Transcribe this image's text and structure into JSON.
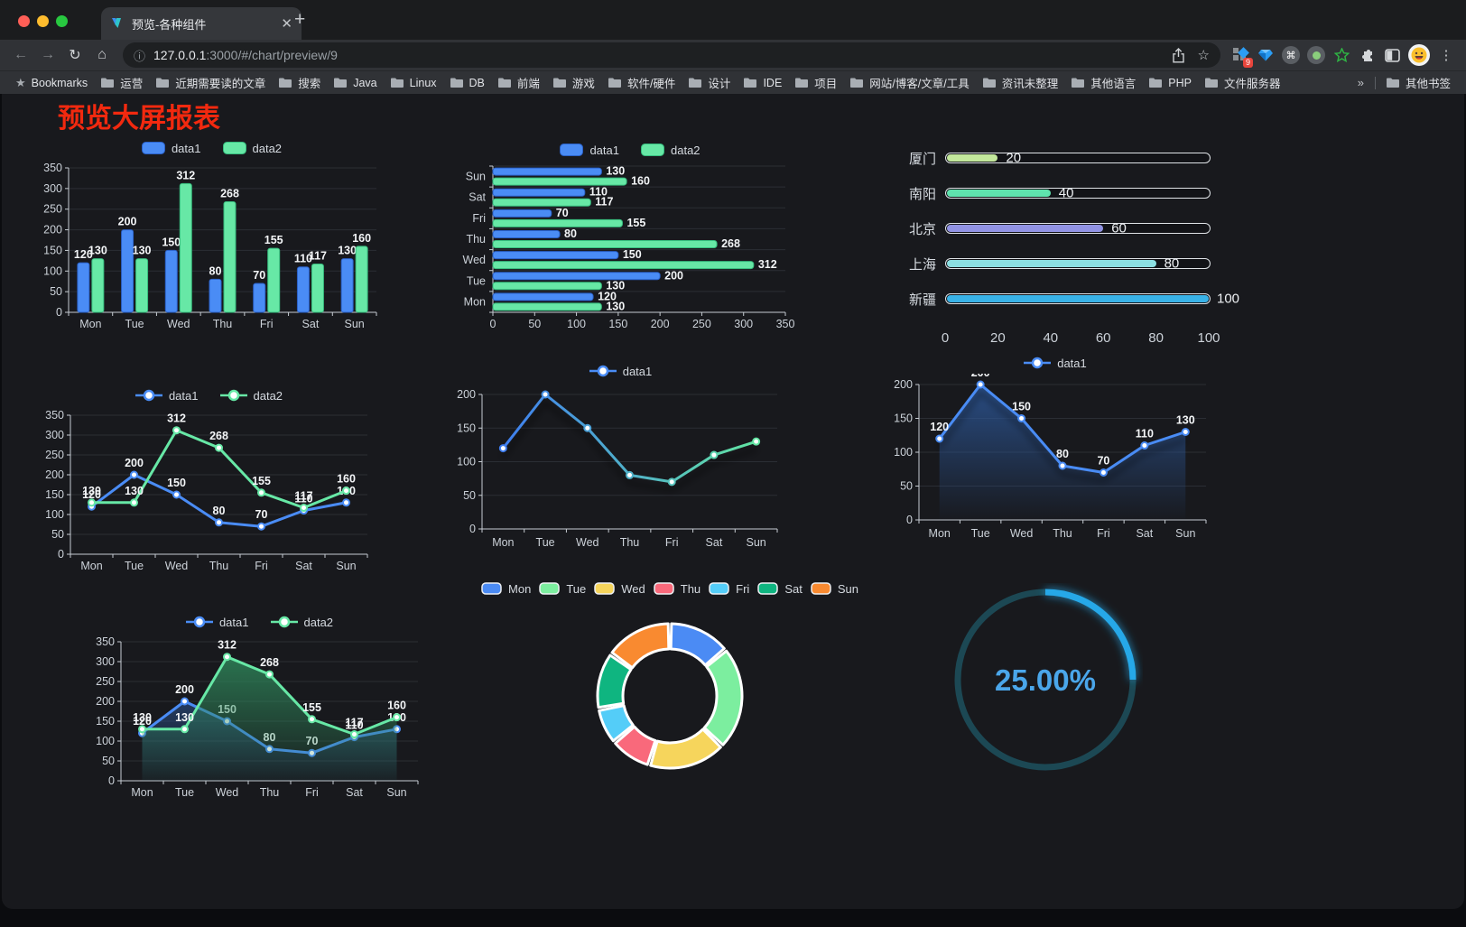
{
  "browser": {
    "tab_title": "预览-各种组件",
    "url": "127.0.0.1:3000/#/chart/preview/9",
    "url_domain": "127.0.0.1",
    "url_path": ":3000/#/chart/preview/9",
    "extension_badge": "9",
    "bookmarks_label": "Bookmarks",
    "bookmarks": [
      "运营",
      "近期需要读的文章",
      "搜索",
      "Java",
      "Linux",
      "DB",
      "前端",
      "游戏",
      "软件/硬件",
      "设计",
      "IDE",
      "项目",
      "网站/博客/文章/工具",
      "资讯未整理",
      "其他语言",
      "PHP",
      "文件服务器"
    ],
    "bookmarks_overflow": "»",
    "other_bookmarks": "其他书签"
  },
  "page": {
    "title": "预览大屏报表",
    "title_color": "#f2290f",
    "panel_background": "#18191d"
  },
  "chart_data": [
    {
      "id": "grouped-bar",
      "type": "bar",
      "categories": [
        "Mon",
        "Tue",
        "Wed",
        "Thu",
        "Fri",
        "Sat",
        "Sun"
      ],
      "series": [
        {
          "name": "data1",
          "color": "#4a8cf5",
          "border": "#2a61c9",
          "values": [
            120,
            200,
            150,
            80,
            70,
            110,
            130
          ]
        },
        {
          "name": "data2",
          "color": "#67e8a6",
          "border": "#36bd7e",
          "values": [
            130,
            130,
            312,
            268,
            155,
            117,
            160
          ]
        }
      ],
      "ylim": [
        0,
        350
      ],
      "ystep": 50,
      "grid": true,
      "labels": true,
      "legend_position": "top"
    },
    {
      "id": "horizontal-bar",
      "type": "bar-horizontal",
      "categories": [
        "Mon",
        "Tue",
        "Wed",
        "Thu",
        "Fri",
        "Sat",
        "Sun"
      ],
      "series": [
        {
          "name": "data1",
          "color": "#4a8cf5",
          "border": "#2a61c9",
          "values": [
            120,
            200,
            150,
            80,
            70,
            110,
            130
          ]
        },
        {
          "name": "data2",
          "color": "#67e8a6",
          "border": "#36bd7e",
          "values": [
            130,
            130,
            312,
            268,
            155,
            117,
            160
          ]
        }
      ],
      "xlim": [
        0,
        350
      ],
      "xstep": 50,
      "labels": true,
      "legend_position": "top"
    },
    {
      "id": "progress-bars",
      "type": "progress",
      "items": [
        {
          "label": "厦门",
          "value": 20,
          "color": "#c3e89c"
        },
        {
          "label": "南阳",
          "value": 40,
          "color": "#5fe3ae"
        },
        {
          "label": "北京",
          "value": 60,
          "color": "#9193e4"
        },
        {
          "label": "上海",
          "value": 80,
          "color": "#8ce0e3"
        },
        {
          "label": "新疆",
          "value": 100,
          "color": "#39b2e7"
        }
      ],
      "max": 100,
      "xticks": [
        0,
        20,
        40,
        60,
        80,
        100
      ]
    },
    {
      "id": "line-two",
      "type": "line",
      "categories": [
        "Mon",
        "Tue",
        "Wed",
        "Thu",
        "Fri",
        "Sat",
        "Sun"
      ],
      "series": [
        {
          "name": "data1",
          "color": "#4a8cf5",
          "values": [
            120,
            200,
            150,
            80,
            70,
            110,
            130
          ]
        },
        {
          "name": "data2",
          "color": "#67e8a6",
          "values": [
            130,
            130,
            312,
            268,
            155,
            117,
            160
          ]
        }
      ],
      "ylim": [
        0,
        350
      ],
      "ystep": 50,
      "labels": true,
      "legend_position": "top"
    },
    {
      "id": "line-gradient",
      "type": "line",
      "categories": [
        "Mon",
        "Tue",
        "Wed",
        "Thu",
        "Fri",
        "Sat",
        "Sun"
      ],
      "series": [
        {
          "name": "data1",
          "color": "#4a8cf5",
          "gradient": [
            "#3f7ef0",
            "#62e5a2"
          ],
          "values": [
            120,
            200,
            150,
            80,
            70,
            110,
            130
          ]
        }
      ],
      "ylim": [
        0,
        200
      ],
      "ystep": 50,
      "labels": false,
      "shadow": true,
      "legend_position": "top"
    },
    {
      "id": "line-area",
      "type": "line",
      "categories": [
        "Mon",
        "Tue",
        "Wed",
        "Thu",
        "Fri",
        "Sat",
        "Sun"
      ],
      "series": [
        {
          "name": "data1",
          "color": "#4a8cf5",
          "area": [
            "rgba(44,86,150,0.85)",
            "rgba(44,86,150,0.02)"
          ],
          "values": [
            120,
            200,
            150,
            80,
            70,
            110,
            130
          ]
        }
      ],
      "ylim": [
        0,
        200
      ],
      "ystep": 50,
      "labels": true,
      "shadow": true,
      "legend_position": "top"
    },
    {
      "id": "line-area-two",
      "type": "line",
      "categories": [
        "Mon",
        "Tue",
        "Wed",
        "Thu",
        "Fri",
        "Sat",
        "Sun"
      ],
      "series": [
        {
          "name": "data1",
          "color": "#4a8cf5",
          "area": [
            "rgba(44,86,150,0.55)",
            "rgba(44,86,150,0.04)"
          ],
          "values": [
            120,
            200,
            150,
            80,
            70,
            110,
            130
          ]
        },
        {
          "name": "data2",
          "color": "#67e8a6",
          "area": [
            "rgba(47,138,92,0.8)",
            "rgba(47,138,92,0.05)"
          ],
          "values": [
            130,
            130,
            312,
            268,
            155,
            117,
            160
          ]
        }
      ],
      "ylim": [
        0,
        350
      ],
      "ystep": 50,
      "labels": true,
      "legend_position": "top"
    },
    {
      "id": "donut",
      "type": "pie",
      "items": [
        {
          "label": "Mon",
          "value": 120,
          "color": "#4b8bf4"
        },
        {
          "label": "Tue",
          "value": 200,
          "color": "#7cee9f"
        },
        {
          "label": "Wed",
          "value": 150,
          "color": "#f6d55c"
        },
        {
          "label": "Thu",
          "value": 80,
          "color": "#f9697b"
        },
        {
          "label": "Fri",
          "value": 70,
          "color": "#54cdf8"
        },
        {
          "label": "Sat",
          "value": 110,
          "color": "#0fb580"
        },
        {
          "label": "Sun",
          "value": 130,
          "color": "#f98a30"
        }
      ],
      "legend_position": "top"
    },
    {
      "id": "gauge",
      "type": "gauge",
      "value": 25,
      "label": "25.00%",
      "color": "#27a8e8",
      "track": "#1c4854",
      "text_color": "#4aa6ea"
    }
  ]
}
